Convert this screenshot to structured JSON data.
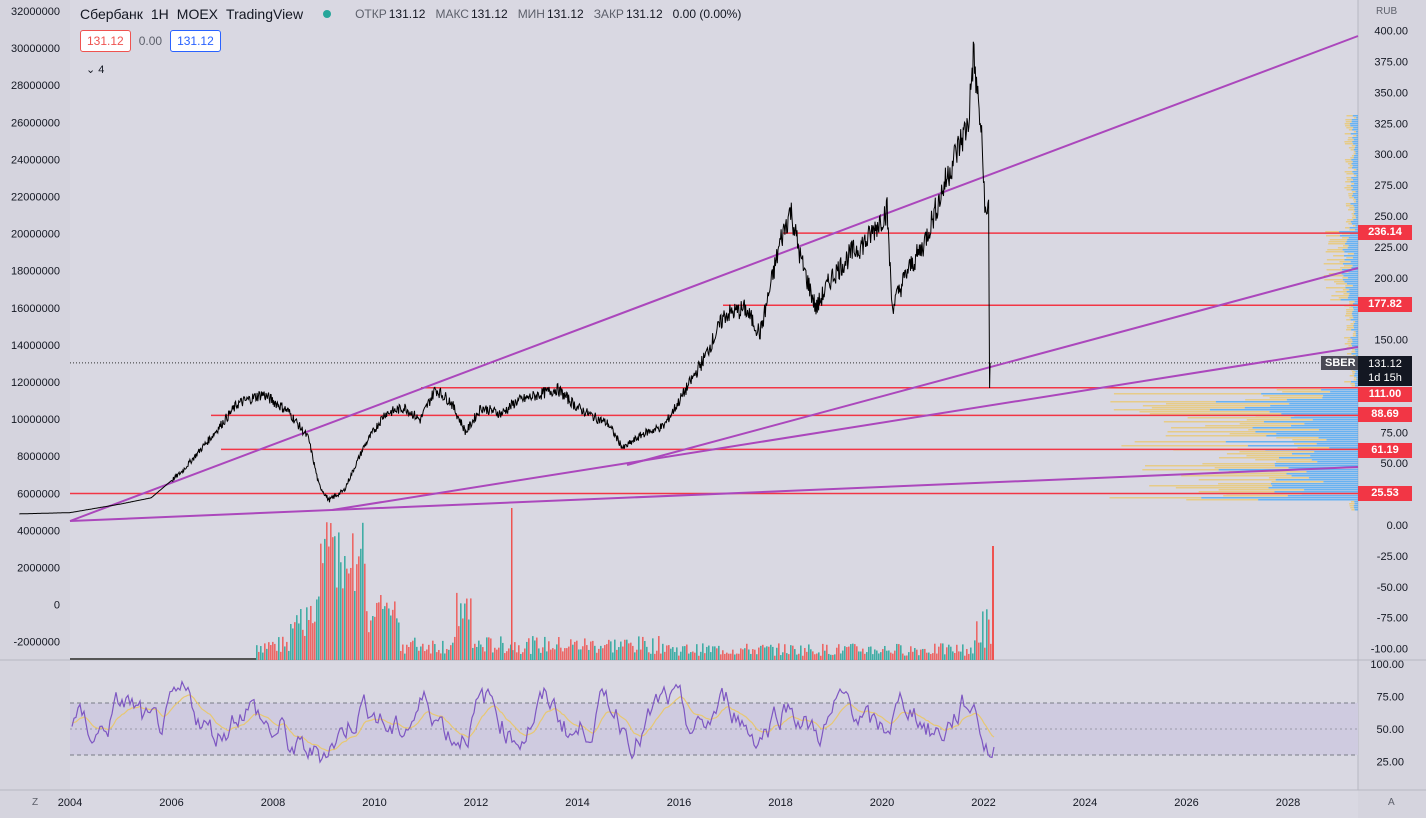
{
  "header": {
    "symbol": "Сбербанк",
    "interval": "1H",
    "exchange": "MOEX",
    "source": "TradingView",
    "ohlc": [
      {
        "label": "ОТКР",
        "value": "131.12"
      },
      {
        "label": "МАКС",
        "value": "131.12"
      },
      {
        "label": "МИН",
        "value": "131.12"
      },
      {
        "label": "ЗАКР",
        "value": "131.12"
      },
      {
        "label": "",
        "value": "0.00 (0.00%)"
      }
    ]
  },
  "order_boxes": {
    "sell": "131.12",
    "spread": "0.00",
    "buy": "131.12"
  },
  "indicators_toggle": {
    "icon": "chevron-down-icon",
    "count": "4"
  },
  "currency": "RUB",
  "current_price": {
    "symbol": "SBER",
    "price": "131.12",
    "countdown": "1d 15h"
  },
  "price_labels": [
    "236.14",
    "177.82",
    "111.00",
    "88.69",
    "61.19",
    "25.53"
  ],
  "bottom_left": "Z",
  "bottom_right": "A",
  "colors": {
    "background": "#d9d8e2",
    "price_line": "#000000",
    "level_line": "#f23645",
    "trend_line": "#ab47bc",
    "rsi_line": "#7e57c2",
    "rsi_ma": "#e8c872",
    "volume_up": "#26a69a",
    "volume_down": "#ef5350"
  },
  "chart_data": {
    "type": "line",
    "x_ticks": [
      "2004",
      "2006",
      "2008",
      "2010",
      "2012",
      "2014",
      "2016",
      "2018",
      "2020",
      "2022",
      "2024",
      "2026",
      "2028"
    ],
    "right_axis_ticks": [
      "400.00",
      "375.00",
      "350.00",
      "325.00",
      "300.00",
      "275.00",
      "250.00",
      "225.00",
      "200.00",
      "150.00",
      "75.00",
      "50.00",
      "0.00",
      "-25.00",
      "-50.00",
      "-75.00",
      "-100.00"
    ],
    "left_axis_ticks": [
      "32000000",
      "30000000",
      "28000000",
      "26000000",
      "24000000",
      "22000000",
      "20000000",
      "18000000",
      "16000000",
      "14000000",
      "12000000",
      "10000000",
      "8000000",
      "6000000",
      "4000000",
      "2000000",
      "0",
      "-2000000"
    ],
    "rsi_ticks": [
      "100.00",
      "75.00",
      "50.00",
      "25.00"
    ],
    "series": [
      {
        "values": [
          [
            2003.0,
            9
          ],
          [
            2004.0,
            10
          ],
          [
            2005.0,
            17
          ],
          [
            2005.6,
            22
          ],
          [
            2006.2,
            43
          ],
          [
            2006.8,
            72
          ],
          [
            2007.3,
            98
          ],
          [
            2007.8,
            106
          ],
          [
            2008.3,
            92
          ],
          [
            2008.7,
            70
          ],
          [
            2008.9,
            33
          ],
          [
            2009.1,
            20
          ],
          [
            2009.4,
            28
          ],
          [
            2009.8,
            64
          ],
          [
            2010.2,
            90
          ],
          [
            2010.6,
            95
          ],
          [
            2010.9,
            85
          ],
          [
            2011.2,
            110
          ],
          [
            2011.5,
            100
          ],
          [
            2011.8,
            75
          ],
          [
            2012.1,
            95
          ],
          [
            2012.5,
            90
          ],
          [
            2012.8,
            100
          ],
          [
            2013.2,
            105
          ],
          [
            2013.6,
            110
          ],
          [
            2014.0,
            95
          ],
          [
            2014.3,
            88
          ],
          [
            2014.6,
            82
          ],
          [
            2014.9,
            62
          ],
          [
            2015.3,
            74
          ],
          [
            2015.7,
            80
          ],
          [
            2016.0,
            100
          ],
          [
            2016.5,
            135
          ],
          [
            2016.9,
            170
          ],
          [
            2017.3,
            175
          ],
          [
            2017.6,
            155
          ],
          [
            2018.0,
            230
          ],
          [
            2018.2,
            255
          ],
          [
            2018.4,
            215
          ],
          [
            2018.7,
            175
          ],
          [
            2019.0,
            200
          ],
          [
            2019.4,
            220
          ],
          [
            2019.7,
            230
          ],
          [
            2020.1,
            255
          ],
          [
            2020.2,
            176
          ],
          [
            2020.5,
            205
          ],
          [
            2020.8,
            225
          ],
          [
            2021.1,
            260
          ],
          [
            2021.4,
            295
          ],
          [
            2021.7,
            325
          ],
          [
            2021.8,
            380
          ],
          [
            2021.95,
            320
          ],
          [
            2022.05,
            245
          ],
          [
            2022.1,
            260
          ],
          [
            2022.12,
            111
          ],
          [
            2022.13,
            131.12
          ]
        ]
      }
    ],
    "ylim": [
      -100,
      400
    ]
  }
}
